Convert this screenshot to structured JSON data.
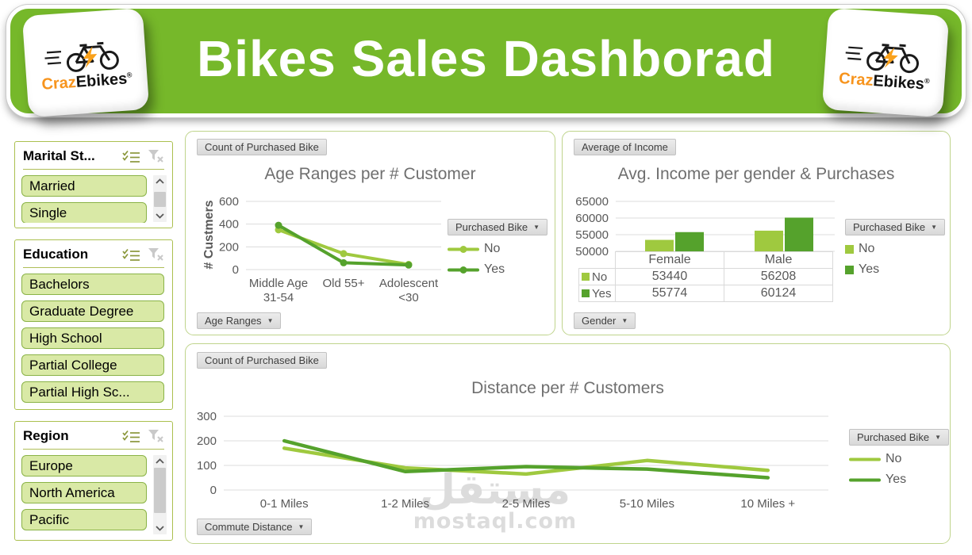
{
  "colors": {
    "header_green": "#76B82A",
    "series_no": "#9FC93F",
    "series_yes": "#55A22C",
    "slicer_item_bg": "#D9E9A6",
    "slicer_item_border": "#8AB347",
    "panel_border": "#BFD48C",
    "grid": "#DCDCDC",
    "axis_text": "#595959",
    "title_text": "#6F6F6F"
  },
  "header": {
    "title": "Bikes Sales Dashborad",
    "logo": {
      "orange": "Craz",
      "black": "Ebikes",
      "reg": "®"
    }
  },
  "slicers": [
    {
      "title": "Marital St...",
      "items": [
        "Married",
        "Single"
      ],
      "scrollbar": true
    },
    {
      "title": "Education",
      "items": [
        "Bachelors",
        "Graduate Degree",
        "High School",
        "Partial College",
        "Partial High Sc..."
      ],
      "scrollbar": false
    },
    {
      "title": "Region",
      "items": [
        "Europe",
        "North America",
        "Pacific"
      ],
      "scrollbar": true
    }
  ],
  "panels": {
    "age": {
      "field_button": "Count of Purchased Bike",
      "legend_button": "Purchased Bike",
      "axis_button": "Age Ranges"
    },
    "income": {
      "field_button": "Average of Income",
      "legend_button": "Purchased Bike",
      "axis_button": "Gender"
    },
    "distance": {
      "field_button": "Count of Purchased Bike",
      "legend_button": "Purchased Bike",
      "axis_button": "Commute Distance"
    }
  },
  "watermark": {
    "arabic": "مستقل",
    "latin": "mostaql.com"
  },
  "chart_data": [
    {
      "type": "line",
      "title": "Age Ranges per # Customer",
      "ylabel": "# Custmers",
      "categories": [
        "Middle Age\n31-54",
        "Old 55+",
        "Adolescent\n<30"
      ],
      "series": [
        {
          "name": "No",
          "color": "#9FC93F",
          "values": [
            350,
            140,
            45
          ]
        },
        {
          "name": "Yes",
          "color": "#55A22C",
          "values": [
            390,
            60,
            40
          ]
        }
      ],
      "ylim": [
        0,
        600
      ],
      "yticks": [
        0,
        200,
        400,
        600
      ],
      "markers": true,
      "grid": true,
      "legend_position": "right",
      "legend_title": "Purchased Bike"
    },
    {
      "type": "bar",
      "title": "Avg. Income per gender & Purchases",
      "xlabel": "Gender",
      "ylabel": "",
      "categories": [
        "Female",
        "Male"
      ],
      "series": [
        {
          "name": "No",
          "color": "#9FC93F",
          "values": [
            53440,
            56208
          ]
        },
        {
          "name": "Yes",
          "color": "#55A22C",
          "values": [
            55774,
            60124
          ]
        }
      ],
      "ylim": [
        50000,
        65000
      ],
      "yticks": [
        50000,
        55000,
        60000,
        65000
      ],
      "data_table": true,
      "grid": true,
      "legend_position": "right",
      "legend_title": "Purchased Bike"
    },
    {
      "type": "line",
      "title": "Distance per # Customers",
      "xlabel": "Commute Distance",
      "ylabel": "",
      "categories": [
        "0-1 Miles",
        "1-2 Miles",
        "2-5 Miles",
        "5-10 Miles",
        "10 Miles +"
      ],
      "series": [
        {
          "name": "No",
          "color": "#9FC93F",
          "values": [
            170,
            90,
            65,
            120,
            80
          ]
        },
        {
          "name": "Yes",
          "color": "#55A22C",
          "values": [
            200,
            75,
            95,
            85,
            50
          ]
        }
      ],
      "ylim": [
        0,
        300
      ],
      "yticks": [
        0,
        100,
        200,
        300
      ],
      "markers": false,
      "grid": true,
      "legend_position": "right",
      "legend_title": "Purchased Bike"
    }
  ]
}
